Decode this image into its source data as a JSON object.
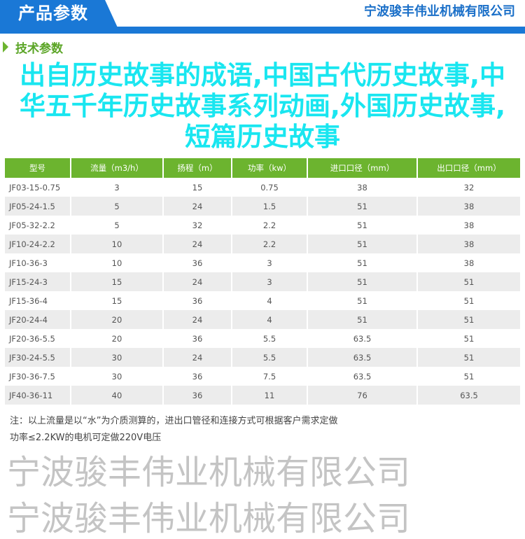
{
  "header": {
    "title": "产品参数",
    "company": "宁波骏丰伟业机械有限公司"
  },
  "section": {
    "title": "技术参数"
  },
  "table": {
    "columns": [
      "型号",
      "流量（m3/h）",
      "扬程（m）",
      "功率（kw）",
      "进口口径（mm）",
      "出口口径（mm）"
    ],
    "rows": [
      [
        "JF03-15-0.75",
        "3",
        "15",
        "0.75",
        "38",
        "32"
      ],
      [
        "JF05-24-1.5",
        "5",
        "24",
        "1.5",
        "51",
        "38"
      ],
      [
        "JF05-32-2.2",
        "5",
        "32",
        "2.2",
        "51",
        "38"
      ],
      [
        "JF10-24-2.2",
        "10",
        "24",
        "2.2",
        "51",
        "38"
      ],
      [
        "JF10-36-3",
        "10",
        "36",
        "3",
        "51",
        "38"
      ],
      [
        "JF15-24-3",
        "15",
        "24",
        "3",
        "51",
        "51"
      ],
      [
        "JF15-36-4",
        "15",
        "36",
        "4",
        "51",
        "51"
      ],
      [
        "JF20-24-4",
        "20",
        "24",
        "4",
        "51",
        "51"
      ],
      [
        "JF20-36-5.5",
        "20",
        "36",
        "5.5",
        "63.5",
        "51"
      ],
      [
        "JF30-24-5.5",
        "30",
        "24",
        "5.5",
        "63.5",
        "51"
      ],
      [
        "JF30-36-7.5",
        "30",
        "36",
        "7.5",
        "63.5",
        "51"
      ],
      [
        "JF40-36-11",
        "40",
        "36",
        "11",
        "76",
        "63.5"
      ]
    ]
  },
  "notes": [
    "注：以上流量是以“水”为介质测算的，进出口管径和连接方式可根据客户需求定做",
    "功率≤2.2KW的电机可定做220V电压"
  ],
  "watermark": "宁波骏丰伟业机械有限公司",
  "overlay_text": "出自历史故事的成语,中国古代历史故事,中华五千年历史故事系列动画,外国历史故事,短篇历史故事"
}
